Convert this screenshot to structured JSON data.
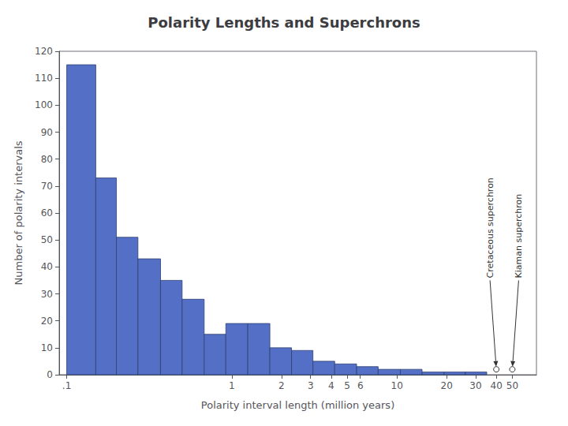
{
  "chart_data": {
    "type": "histogram",
    "title": "Polarity Lengths and Superchrons",
    "xlabel": "Polarity interval length (million years)",
    "ylabel": "Number of polarity intervals",
    "bins": [
      0.1,
      0.15,
      0.2,
      0.27,
      0.37,
      0.5,
      0.68,
      0.92,
      1.25,
      1.7,
      2.3,
      3.1,
      4.2,
      5.7,
      7.7,
      10.5,
      14.2,
      19.3,
      26.0,
      35.0,
      47.5,
      64.0
    ],
    "values": [
      115,
      73,
      51,
      43,
      35,
      28,
      15,
      19,
      19,
      10,
      9,
      5,
      4,
      3,
      2,
      2,
      1,
      1,
      1,
      0,
      0
    ],
    "log": "x",
    "xlim": [
      0.09,
      70
    ],
    "xticks": [
      {
        "value": 0.1,
        "label": ".1"
      },
      1,
      2,
      3,
      4,
      5,
      6,
      10,
      20,
      30,
      40,
      50
    ],
    "ylim": [
      0,
      120
    ],
    "yticks": [
      0,
      10,
      20,
      30,
      40,
      50,
      60,
      70,
      80,
      90,
      100,
      110,
      120
    ],
    "grid": false,
    "annotations": [
      {
        "text": "Cretaceous superchron",
        "x": 40,
        "y": 2,
        "text_y": 35
      },
      {
        "text": "Kiaman superchron",
        "x": 50,
        "y": 2,
        "text_y": 35
      }
    ]
  }
}
